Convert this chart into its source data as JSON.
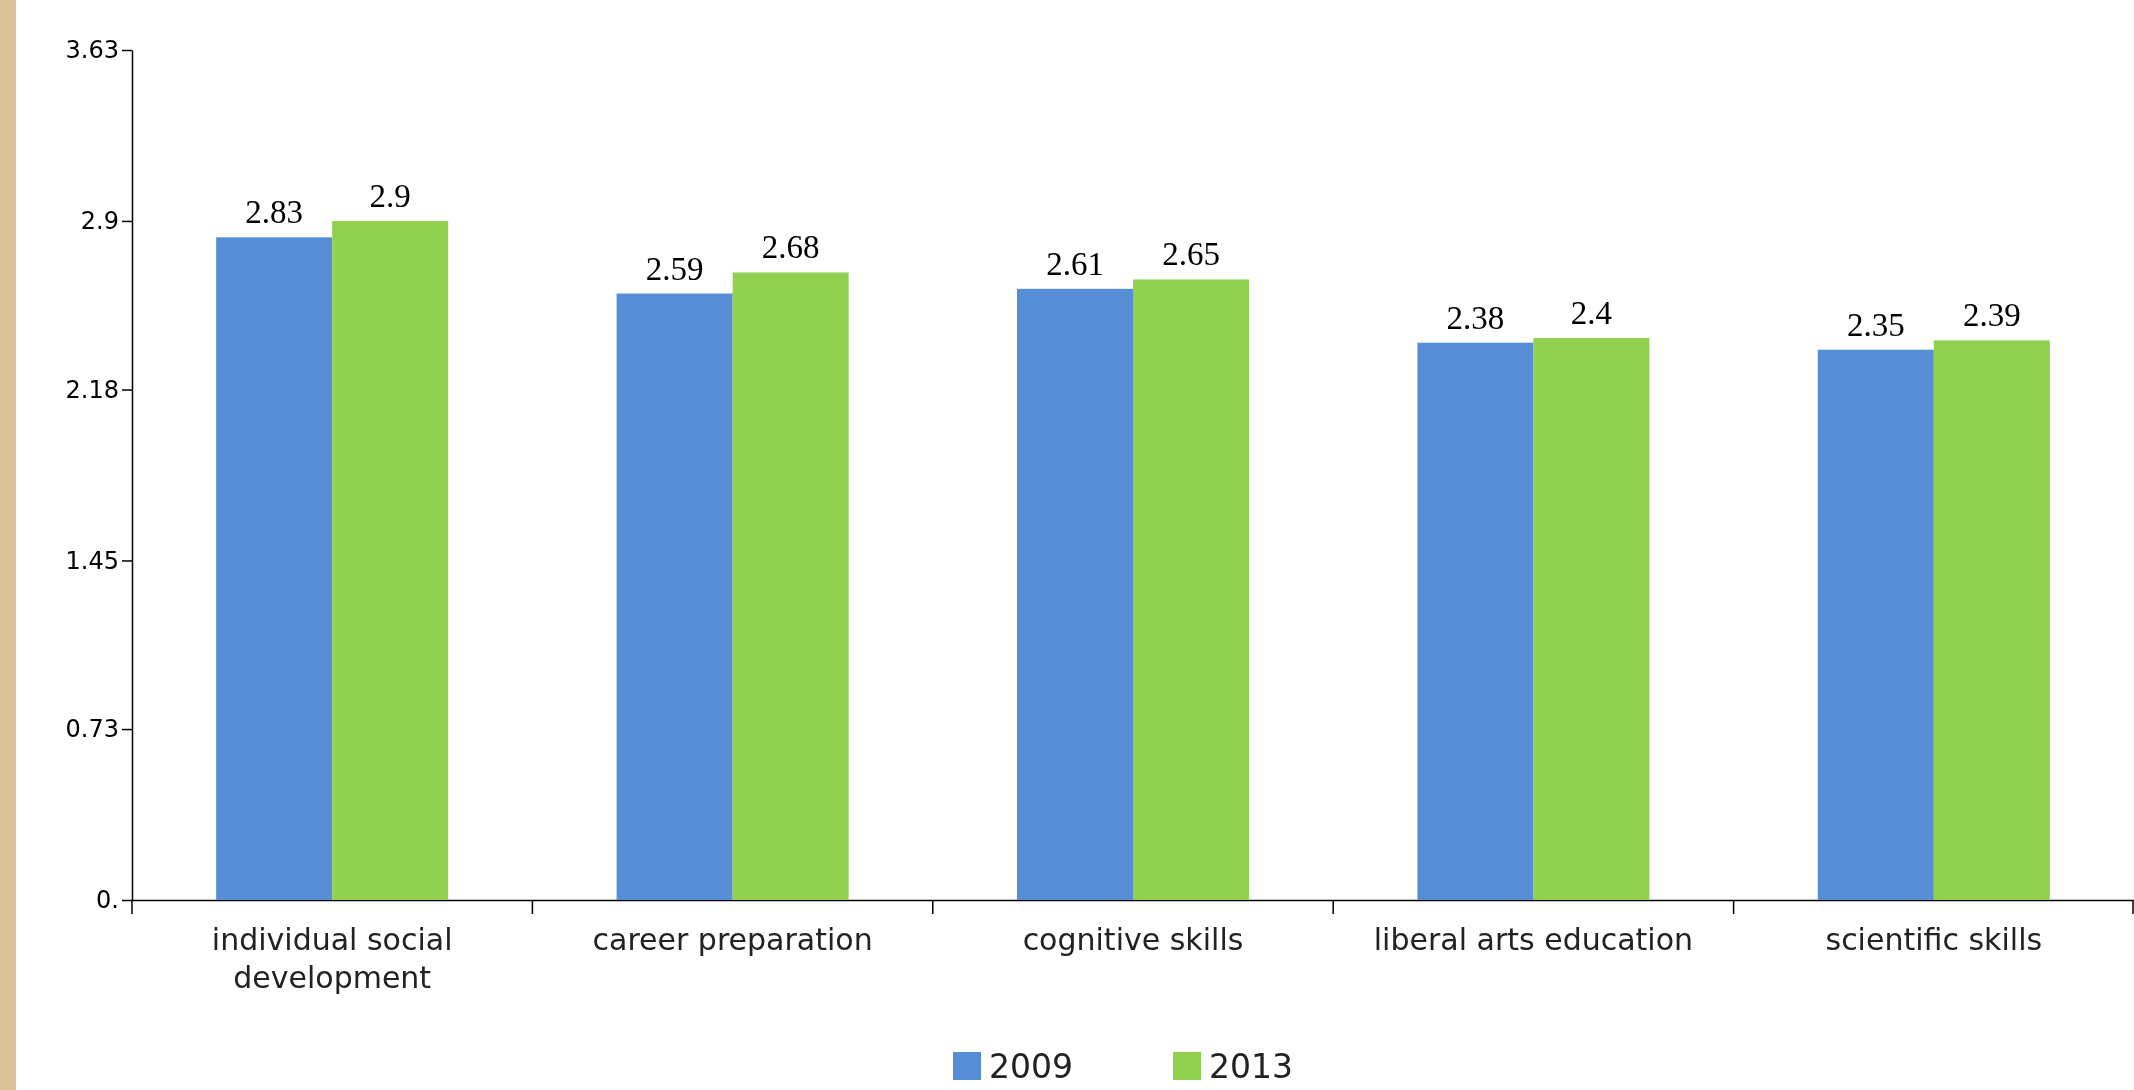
{
  "chart_data": {
    "type": "bar",
    "categories": [
      "individual social development",
      "career preparation",
      "cognitive skills",
      "liberal arts education",
      "scientific skills"
    ],
    "series": [
      {
        "name": "2009",
        "color": "#558ed5",
        "values": [
          2.83,
          2.59,
          2.61,
          2.38,
          2.35
        ]
      },
      {
        "name": "2013",
        "color": "#92d050",
        "values": [
          2.9,
          2.68,
          2.65,
          2.4,
          2.39
        ]
      }
    ],
    "ylim": [
      0,
      3.63
    ],
    "yticks": [
      {
        "value": 0,
        "label": "0."
      },
      0.73,
      1.45,
      2.18,
      2.9,
      3.63
    ],
    "data_labels": true,
    "legend": "bottom",
    "grid": false
  }
}
